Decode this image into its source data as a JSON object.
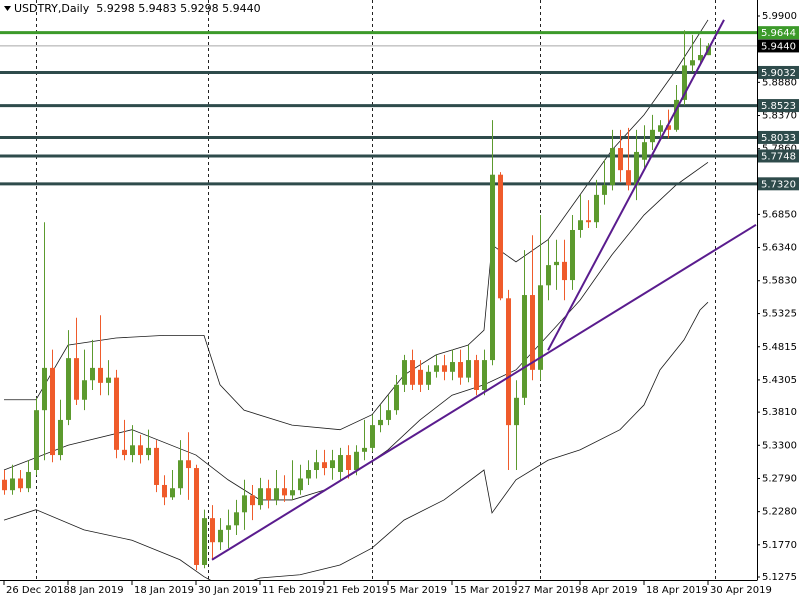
{
  "chart_data": {
    "type": "candlestick",
    "title": "USDTRY,Daily  5.9298 5.9483 5.9298 5.9440",
    "categories": [
      "26 Dec 2018",
      null,
      null,
      null,
      null,
      null,
      null,
      null,
      "8 Jan 2019",
      null,
      null,
      null,
      null,
      null,
      null,
      null,
      "18 Jan 2019",
      null,
      null,
      null,
      null,
      null,
      null,
      null,
      "30 Jan 2019",
      null,
      null,
      null,
      null,
      null,
      null,
      null,
      "11 Feb 2019",
      null,
      null,
      null,
      null,
      null,
      null,
      null,
      "21 Feb 2019",
      null,
      null,
      null,
      null,
      null,
      null,
      null,
      "5 Mar 2019",
      null,
      null,
      null,
      null,
      null,
      null,
      null,
      "15 Mar 2019",
      null,
      null,
      null,
      null,
      null,
      null,
      null,
      "27 Mar 2019",
      null,
      null,
      null,
      null,
      null,
      null,
      null,
      "8 Apr 2019",
      null,
      null,
      null,
      null,
      null,
      null,
      null,
      "18 Apr 2019",
      null,
      null,
      null,
      null,
      null,
      null,
      null,
      "30 Apr 2019"
    ],
    "open": [
      5.277,
      5.261,
      5.279,
      5.264,
      5.292,
      5.384,
      5.449,
      5.315,
      5.369,
      5.464,
      5.4,
      5.43,
      5.449,
      5.426,
      5.434,
      5.323,
      5.315,
      5.33,
      5.315,
      5.326,
      5.269,
      5.25,
      5.264,
      5.307,
      5.295,
      5.146,
      5.218,
      5.181,
      5.2,
      5.207,
      5.227,
      5.253,
      5.238,
      5.264,
      5.246,
      5.264,
      5.253,
      5.261,
      5.279,
      5.292,
      5.304,
      5.295,
      5.289,
      5.315,
      5.292,
      5.32,
      5.326,
      5.361,
      5.369,
      5.384,
      5.423,
      5.461,
      5.446,
      5.423,
      5.443,
      5.453,
      5.443,
      5.458,
      5.434,
      5.461,
      5.415,
      5.461,
      5.746,
      5.556,
      5.361,
      5.403,
      5.561,
      5.446,
      5.576,
      5.607,
      5.612,
      5.584,
      5.661,
      5.676,
      5.673,
      5.715,
      5.73,
      5.787,
      5.753,
      5.73,
      5.769,
      5.796,
      5.812,
      5.822,
      5.815,
      5.861,
      5.914,
      5.922,
      5.9298
    ],
    "high": [
      5.292,
      5.3,
      5.292,
      5.307,
      5.403,
      5.673,
      5.477,
      5.4,
      5.507,
      5.526,
      5.477,
      5.492,
      5.53,
      5.461,
      5.446,
      5.369,
      5.361,
      5.346,
      5.354,
      5.338,
      5.284,
      5.292,
      5.338,
      5.35,
      5.3,
      5.231,
      5.238,
      5.218,
      5.231,
      5.246,
      5.277,
      5.269,
      5.28,
      5.277,
      5.292,
      5.284,
      5.307,
      5.3,
      5.307,
      5.323,
      5.323,
      5.323,
      5.326,
      5.33,
      5.33,
      5.369,
      5.377,
      5.392,
      5.407,
      5.438,
      5.469,
      5.477,
      5.461,
      5.453,
      5.469,
      5.469,
      5.477,
      5.477,
      5.484,
      5.469,
      5.477,
      5.83,
      5.75,
      5.569,
      5.43,
      5.63,
      5.653,
      5.684,
      5.646,
      5.646,
      5.646,
      5.684,
      5.715,
      5.707,
      5.738,
      5.769,
      5.815,
      5.815,
      5.818,
      5.815,
      5.822,
      5.838,
      5.83,
      5.846,
      5.884,
      5.968,
      5.961,
      5.956,
      5.9483
    ],
    "low": [
      5.254,
      5.254,
      5.258,
      5.258,
      5.284,
      5.307,
      5.304,
      5.307,
      5.361,
      5.392,
      5.384,
      5.415,
      5.407,
      5.407,
      5.31,
      5.307,
      5.304,
      5.302,
      5.307,
      5.258,
      5.238,
      5.246,
      5.254,
      5.246,
      5.138,
      5.141,
      5.154,
      5.169,
      5.172,
      5.192,
      5.2,
      5.215,
      5.231,
      5.233,
      5.238,
      5.243,
      5.246,
      5.254,
      5.269,
      5.279,
      5.284,
      5.277,
      5.277,
      5.279,
      5.284,
      5.307,
      5.32,
      5.35,
      5.361,
      5.377,
      5.412,
      5.415,
      5.412,
      5.415,
      5.434,
      5.43,
      5.43,
      5.423,
      5.427,
      5.407,
      5.407,
      5.453,
      5.553,
      5.292,
      5.292,
      5.392,
      5.43,
      5.43,
      5.553,
      5.569,
      5.553,
      5.569,
      5.649,
      5.664,
      5.664,
      5.7,
      5.722,
      5.735,
      5.722,
      5.707,
      5.753,
      5.784,
      5.799,
      5.802,
      5.812,
      5.853,
      5.904,
      5.914,
      5.9298
    ],
    "close": [
      5.261,
      5.279,
      5.264,
      5.289,
      5.384,
      5.449,
      5.315,
      5.369,
      5.464,
      5.4,
      5.43,
      5.449,
      5.426,
      5.434,
      5.323,
      5.315,
      5.33,
      5.315,
      5.326,
      5.269,
      5.25,
      5.264,
      5.307,
      5.295,
      5.146,
      5.218,
      5.181,
      5.2,
      5.207,
      5.227,
      5.253,
      5.238,
      5.264,
      5.246,
      5.264,
      5.253,
      5.261,
      5.279,
      5.292,
      5.304,
      5.295,
      5.307,
      5.315,
      5.292,
      5.32,
      5.326,
      5.361,
      5.369,
      5.384,
      5.423,
      5.461,
      5.423,
      5.423,
      5.443,
      5.453,
      5.443,
      5.458,
      5.434,
      5.461,
      5.415,
      5.461,
      5.746,
      5.556,
      5.361,
      5.403,
      5.561,
      5.446,
      5.576,
      5.607,
      5.612,
      5.584,
      5.661,
      5.676,
      5.673,
      5.715,
      5.73,
      5.787,
      5.753,
      5.73,
      5.781,
      5.796,
      5.815,
      5.822,
      5.815,
      5.861,
      5.914,
      5.922,
      5.93,
      5.944
    ],
    "up_color": "#5c9a2e",
    "down_color": "#ef5b2b",
    "bands": [
      {
        "color": "#1a1a1a",
        "x": [
          0,
          4,
          8,
          14,
          20,
          25,
          27,
          30,
          36,
          42,
          46,
          50,
          54,
          58,
          60,
          61,
          64,
          68,
          72,
          76,
          80,
          84,
          86,
          88
        ],
        "values": [
          5.4,
          5.4,
          5.484,
          5.495,
          5.499,
          5.499,
          5.423,
          5.384,
          5.361,
          5.354,
          5.377,
          5.438,
          5.469,
          5.484,
          5.507,
          5.638,
          5.612,
          5.646,
          5.715,
          5.784,
          5.838,
          5.907,
          5.945,
          5.984
        ]
      },
      {
        "color": "#1a1a1a",
        "x": [
          0,
          8,
          16,
          24,
          28,
          32,
          36,
          40,
          44,
          48,
          52,
          56,
          60,
          64,
          68,
          72,
          76,
          80,
          84,
          88
        ],
        "values": [
          5.292,
          5.33,
          5.354,
          5.315,
          5.277,
          5.246,
          5.246,
          5.261,
          5.289,
          5.323,
          5.369,
          5.407,
          5.423,
          5.446,
          5.499,
          5.553,
          5.623,
          5.684,
          5.73,
          5.765
        ]
      },
      {
        "color": "#1a1a1a",
        "x": [
          0,
          4,
          10,
          16,
          22,
          25,
          28,
          32,
          37,
          42,
          46,
          50,
          55,
          60,
          61,
          64,
          68,
          72,
          77,
          80,
          82,
          85,
          87,
          88
        ],
        "values": [
          5.215,
          5.231,
          5.2,
          5.184,
          5.154,
          5.128,
          5.108,
          5.126,
          5.131,
          5.146,
          5.172,
          5.215,
          5.246,
          5.292,
          5.226,
          5.277,
          5.307,
          5.323,
          5.354,
          5.392,
          5.446,
          5.492,
          5.538,
          5.55
        ]
      }
    ],
    "trend_lines": [
      {
        "color": "#5a1c8e",
        "x": [
          26,
          94
        ],
        "values": [
          5.154,
          5.669
        ]
      },
      {
        "color": "#5a1c8e",
        "x": [
          68,
          90
        ],
        "values": [
          5.476,
          5.984
        ]
      }
    ],
    "levels": [
      {
        "value": 5.9644,
        "label": "5.9644",
        "color": "#3c9a2a"
      },
      {
        "value": 5.9032,
        "label": "5.9032",
        "color": "#2e4b4b"
      },
      {
        "value": 5.8523,
        "label": "5.8523",
        "color": "#2e4b4b"
      },
      {
        "value": 5.8033,
        "label": "5.8033",
        "color": "#2e4b4b"
      },
      {
        "value": 5.7748,
        "label": "5.7748",
        "color": "#2e4b4b"
      },
      {
        "value": 5.732,
        "label": "5.7320",
        "color": "#2e4b4b"
      }
    ],
    "bid": {
      "value": 5.944,
      "label": "5.9440",
      "color": "#a8a8a8"
    },
    "ylim": [
      5.1229,
      6.0146
    ],
    "yticks": [
      {
        "value": 5.99,
        "label": "5.9900"
      },
      {
        "value": 5.888,
        "label": "5.8880"
      },
      {
        "value": 5.837,
        "label": "5.8370"
      },
      {
        "value": 5.786,
        "label": "5.7860"
      },
      {
        "value": 5.685,
        "label": "5.6850"
      },
      {
        "value": 5.634,
        "label": "5.6340"
      },
      {
        "value": 5.583,
        "label": "5.5830"
      },
      {
        "value": 5.5325,
        "label": "5.5325"
      },
      {
        "value": 5.4815,
        "label": "5.4815"
      },
      {
        "value": 5.4305,
        "label": "5.4305"
      },
      {
        "value": 5.381,
        "label": "5.3810"
      },
      {
        "value": 5.33,
        "label": "5.3300"
      },
      {
        "value": 5.279,
        "label": "5.2790"
      },
      {
        "value": 5.228,
        "label": "5.2280"
      },
      {
        "value": 5.177,
        "label": "5.1770"
      },
      {
        "value": 5.1275,
        "label": "5.1275"
      }
    ]
  }
}
